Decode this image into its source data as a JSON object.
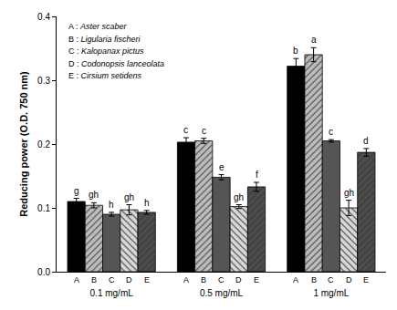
{
  "chart_data": {
    "type": "bar",
    "y_label": "Reducing power (O.D. 750 nm)",
    "categories": [
      "0.1 mg/mL",
      "0.5 mg/mL",
      "1 mg/mL"
    ],
    "series": [
      {
        "key": "A",
        "name": "A : Aster scaber",
        "color": "#000000",
        "values": [
          0.11,
          0.203,
          0.322
        ],
        "errors": [
          0.005,
          0.007,
          0.012
        ],
        "letters": [
          "g",
          "c",
          "b"
        ]
      },
      {
        "key": "B",
        "name": "B : Ligularia fischeri",
        "color": "#bdbdbd",
        "values": [
          0.104,
          0.205,
          0.34
        ],
        "errors": [
          0.004,
          0.004,
          0.011
        ],
        "letters": [
          "gh",
          "c",
          "a"
        ]
      },
      {
        "key": "C",
        "name": "C : Kalopanax pictus",
        "color": "#555555",
        "values": [
          0.09,
          0.148,
          0.205
        ],
        "errors": [
          0.003,
          0.004,
          0.002
        ],
        "letters": [
          "h",
          "e",
          "c"
        ]
      },
      {
        "key": "D",
        "name": "D : Codonopsis lanceolata",
        "color": "#d9d9d9",
        "values": [
          0.097,
          0.102,
          0.1
        ],
        "errors": [
          0.008,
          0.003,
          0.012
        ],
        "letters": [
          "gh",
          "gh",
          "gh"
        ]
      },
      {
        "key": "E",
        "name": "E : Cirsium setidens",
        "color": "#444444",
        "values": [
          0.093,
          0.133,
          0.187
        ],
        "errors": [
          0.003,
          0.007,
          0.006
        ],
        "letters": [
          "h",
          "f",
          "d"
        ]
      }
    ],
    "ylim": [
      0,
      0.4
    ],
    "yticks": [
      {
        "value": 0,
        "label": "0.0"
      },
      0.1,
      0.2,
      0.3,
      0.4
    ],
    "grid": false
  }
}
